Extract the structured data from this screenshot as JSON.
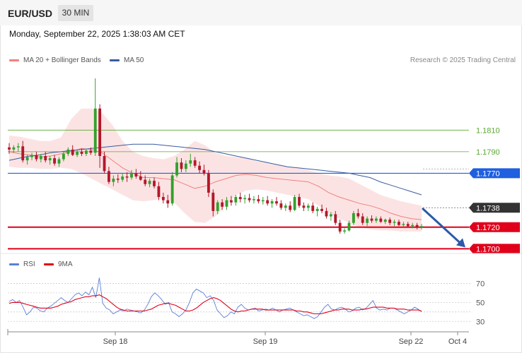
{
  "header": {
    "symbol": "EUR/USD",
    "timeframe": "30 MIN",
    "datetime": "Monday, September 22, 2025 1:38:03 AM CET"
  },
  "legend": {
    "bollinger": "MA 20 + Bollinger Bands",
    "ma50": "MA 50",
    "rsi": "RSI",
    "rsi_ma": "9MA",
    "credit": "Research © 2025 Trading Central"
  },
  "colors": {
    "bull": "#33a02c",
    "bear": "#b2182b",
    "bollinger": "#f08080",
    "ma50": "#3a5ba0",
    "rsi": "#5b7fd8",
    "rsi_ma": "#e0001a",
    "resistance": "#5aa832",
    "pivot": "#1f5fe0",
    "support": "#e0001a",
    "last": "#333333",
    "arrow": "#2a5aa8"
  },
  "chart_data": [
    {
      "type": "candlestick",
      "x_labels": [
        "Sep 18",
        "Sep 19",
        "Sep 22",
        "Oct 4"
      ],
      "ylim": [
        1.1695,
        1.1875
      ],
      "levels": [
        {
          "label": "1.1810",
          "value": 1.181,
          "kind": "resistance"
        },
        {
          "label": "1.1790",
          "value": 1.179,
          "kind": "resistance"
        },
        {
          "label": "1.1770",
          "value": 1.177,
          "kind": "pivot"
        },
        {
          "label": "1.1738",
          "value": 1.1738,
          "kind": "last"
        },
        {
          "label": "1.1720",
          "value": 1.172,
          "kind": "support"
        },
        {
          "label": "1.1700",
          "value": 1.17,
          "kind": "support"
        }
      ],
      "candles": [
        [
          1.1794,
          1.1798,
          1.1788,
          1.1792
        ],
        [
          1.1792,
          1.1796,
          1.1789,
          1.1794
        ],
        [
          1.1794,
          1.1798,
          1.179,
          1.1795
        ],
        [
          1.1795,
          1.18,
          1.178,
          1.1782
        ],
        [
          1.1782,
          1.1787,
          1.1778,
          1.1785
        ],
        [
          1.1785,
          1.1789,
          1.1782,
          1.1787
        ],
        [
          1.1787,
          1.179,
          1.1781,
          1.1783
        ],
        [
          1.1783,
          1.1788,
          1.178,
          1.1786
        ],
        [
          1.1786,
          1.179,
          1.178,
          1.1782
        ],
        [
          1.1782,
          1.1786,
          1.1778,
          1.1784
        ],
        [
          1.1784,
          1.1787,
          1.1777,
          1.1779
        ],
        [
          1.1779,
          1.1785,
          1.1776,
          1.1783
        ],
        [
          1.1783,
          1.179,
          1.1781,
          1.1788
        ],
        [
          1.1788,
          1.1794,
          1.1786,
          1.1792
        ],
        [
          1.1792,
          1.1796,
          1.1786,
          1.1787
        ],
        [
          1.1787,
          1.1792,
          1.1785,
          1.179
        ],
        [
          1.179,
          1.1793,
          1.1786,
          1.1788
        ],
        [
          1.1788,
          1.1792,
          1.1786,
          1.1791
        ],
        [
          1.1791,
          1.1794,
          1.1787,
          1.1789
        ],
        [
          1.1789,
          1.1858,
          1.1786,
          1.183
        ],
        [
          1.183,
          1.1834,
          1.1775,
          1.1786
        ],
        [
          1.1786,
          1.179,
          1.177,
          1.1772
        ],
        [
          1.1772,
          1.1776,
          1.176,
          1.1762
        ],
        [
          1.1762,
          1.1768,
          1.1758,
          1.1765
        ],
        [
          1.1765,
          1.1769,
          1.1761,
          1.1764
        ],
        [
          1.1764,
          1.177,
          1.1762,
          1.1767
        ],
        [
          1.1767,
          1.1771,
          1.1762,
          1.1766
        ],
        [
          1.1766,
          1.1773,
          1.1764,
          1.177
        ],
        [
          1.177,
          1.1774,
          1.1765,
          1.1767
        ],
        [
          1.1767,
          1.1772,
          1.1763,
          1.1764
        ],
        [
          1.1764,
          1.1768,
          1.1758,
          1.176
        ],
        [
          1.176,
          1.1765,
          1.1757,
          1.1763
        ],
        [
          1.1763,
          1.1766,
          1.1756,
          1.1758
        ],
        [
          1.1758,
          1.1762,
          1.1745,
          1.1748
        ],
        [
          1.1748,
          1.1752,
          1.1742,
          1.1745
        ],
        [
          1.1745,
          1.175,
          1.1738,
          1.1742
        ],
        [
          1.1742,
          1.1771,
          1.174,
          1.1768
        ],
        [
          1.1768,
          1.1785,
          1.1766,
          1.178
        ],
        [
          1.178,
          1.1784,
          1.1771,
          1.1774
        ],
        [
          1.1774,
          1.1782,
          1.1771,
          1.1779
        ],
        [
          1.1779,
          1.1788,
          1.1776,
          1.1782
        ],
        [
          1.1782,
          1.1785,
          1.1775,
          1.1777
        ],
        [
          1.1777,
          1.1781,
          1.177,
          1.1773
        ],
        [
          1.1773,
          1.1778,
          1.1768,
          1.177
        ],
        [
          1.177,
          1.1773,
          1.1748,
          1.1752
        ],
        [
          1.1752,
          1.1755,
          1.173,
          1.1735
        ],
        [
          1.1735,
          1.1745,
          1.1732,
          1.1743
        ],
        [
          1.1743,
          1.1746,
          1.1736,
          1.1739
        ],
        [
          1.1739,
          1.1748,
          1.1736,
          1.1745
        ],
        [
          1.1745,
          1.1749,
          1.174,
          1.1743
        ],
        [
          1.1743,
          1.175,
          1.174,
          1.1748
        ],
        [
          1.1748,
          1.1752,
          1.1743,
          1.1746
        ],
        [
          1.1746,
          1.175,
          1.1742,
          1.1747
        ],
        [
          1.1747,
          1.1751,
          1.1743,
          1.1745
        ],
        [
          1.1745,
          1.1749,
          1.1742,
          1.1746
        ],
        [
          1.1746,
          1.175,
          1.1742,
          1.1744
        ],
        [
          1.1744,
          1.1748,
          1.1741,
          1.1745
        ],
        [
          1.1745,
          1.1749,
          1.174,
          1.1742
        ],
        [
          1.1742,
          1.1746,
          1.1738,
          1.1744
        ],
        [
          1.1744,
          1.1748,
          1.174,
          1.1742
        ],
        [
          1.1742,
          1.1745,
          1.1736,
          1.1738
        ],
        [
          1.1738,
          1.1742,
          1.1735,
          1.174
        ],
        [
          1.174,
          1.1744,
          1.1734,
          1.1736
        ],
        [
          1.1736,
          1.175,
          1.1735,
          1.1748
        ],
        [
          1.1748,
          1.1751,
          1.1738,
          1.174
        ],
        [
          1.174,
          1.1743,
          1.1735,
          1.1738
        ],
        [
          1.1738,
          1.1742,
          1.1735,
          1.174
        ],
        [
          1.174,
          1.1743,
          1.1733,
          1.1735
        ],
        [
          1.1735,
          1.1739,
          1.173,
          1.1737
        ],
        [
          1.1737,
          1.1741,
          1.1733,
          1.1735
        ],
        [
          1.1735,
          1.1738,
          1.1728,
          1.173
        ],
        [
          1.173,
          1.1734,
          1.1726,
          1.1732
        ],
        [
          1.1732,
          1.1735,
          1.1722,
          1.1724
        ],
        [
          1.1724,
          1.1727,
          1.1714,
          1.1716
        ],
        [
          1.1716,
          1.1719,
          1.1714,
          1.1717
        ],
        [
          1.1717,
          1.1726,
          1.1716,
          1.1724
        ],
        [
          1.1724,
          1.1735,
          1.1722,
          1.1733
        ],
        [
          1.1733,
          1.1737,
          1.1728,
          1.173
        ],
        [
          1.173,
          1.1733,
          1.1722,
          1.1724
        ],
        [
          1.1724,
          1.173,
          1.1721,
          1.1728
        ],
        [
          1.1728,
          1.1731,
          1.1724,
          1.1726
        ],
        [
          1.1726,
          1.173,
          1.1724,
          1.1728
        ],
        [
          1.1728,
          1.173,
          1.1724,
          1.1725
        ],
        [
          1.1725,
          1.1728,
          1.1723,
          1.1727
        ],
        [
          1.1727,
          1.1729,
          1.1722,
          1.1724
        ],
        [
          1.1724,
          1.1727,
          1.1721,
          1.1725
        ],
        [
          1.1725,
          1.1727,
          1.1721,
          1.1722
        ],
        [
          1.1722,
          1.1725,
          1.172,
          1.1723
        ],
        [
          1.1723,
          1.1725,
          1.172,
          1.1721
        ],
        [
          1.1721,
          1.1724,
          1.1719,
          1.1722
        ],
        [
          1.1722,
          1.1724,
          1.1718,
          1.172
        ],
        [
          1.172,
          1.1723,
          1.1718,
          1.1721
        ]
      ],
      "ma50": [
        1.1782,
        1.1784,
        1.1786,
        1.1787,
        1.1789,
        1.179,
        1.1791,
        1.1792,
        1.1793,
        1.1794,
        1.1795,
        1.1796,
        1.1797,
        1.1797,
        1.1797,
        1.1796,
        1.1795,
        1.1794,
        1.1793,
        1.1792,
        1.179,
        1.1788,
        1.1786,
        1.1784,
        1.1782,
        1.178,
        1.1778,
        1.1776,
        1.1775,
        1.1774,
        1.1773,
        1.1772,
        1.1771,
        1.177,
        1.1768,
        1.1766,
        1.1762,
        1.1759,
        1.1756,
        1.1753,
        1.175
      ],
      "ma20": [
        1.179,
        1.1788,
        1.1787,
        1.1785,
        1.1786,
        1.1788,
        1.179,
        1.1793,
        1.1792,
        1.1789,
        1.1782,
        1.1775,
        1.177,
        1.1766,
        1.1766,
        1.1765,
        1.1764,
        1.176,
        1.1756,
        1.1758,
        1.1762,
        1.1765,
        1.1768,
        1.1769,
        1.1768,
        1.1766,
        1.1765,
        1.1764,
        1.1763,
        1.1762,
        1.1758,
        1.1752,
        1.1748,
        1.1745,
        1.1742,
        1.174,
        1.1737,
        1.1733,
        1.173,
        1.1728,
        1.1727
      ],
      "bb_upper": [
        1.1805,
        1.1804,
        1.1802,
        1.18,
        1.18,
        1.1803,
        1.182,
        1.183,
        1.183,
        1.1826,
        1.1815,
        1.18,
        1.179,
        1.1786,
        1.1784,
        1.1783,
        1.1786,
        1.1792,
        1.18,
        1.1796,
        1.1789,
        1.1786,
        1.1785,
        1.1784,
        1.1781,
        1.178,
        1.1778,
        1.1776,
        1.1775,
        1.1773,
        1.177,
        1.1768,
        1.1767,
        1.1765,
        1.176,
        1.1755,
        1.175,
        1.1747,
        1.1744,
        1.1742,
        1.174
      ],
      "bb_lower": [
        1.1776,
        1.1775,
        1.1775,
        1.1774,
        1.1774,
        1.1775,
        1.1774,
        1.177,
        1.1765,
        1.176,
        1.1755,
        1.175,
        1.1745,
        1.1744,
        1.1745,
        1.1747,
        1.1743,
        1.1733,
        1.1725,
        1.1724,
        1.173,
        1.174,
        1.175,
        1.1754,
        1.1755,
        1.1754,
        1.1752,
        1.175,
        1.1748,
        1.1746,
        1.174,
        1.1733,
        1.1728,
        1.1724,
        1.172,
        1.1718,
        1.1717,
        1.1717,
        1.1716,
        1.1716,
        1.1716
      ],
      "projection": {
        "from": [
          1.1737,
          1.1738
        ],
        "to": [
          1.17,
          1.17
        ]
      }
    },
    {
      "type": "line",
      "name": "RSI",
      "ylim": [
        25,
        80
      ],
      "y_ticks": [
        "70",
        "50",
        "30"
      ],
      "series": [
        {
          "name": "RSI",
          "values": [
            51,
            53,
            50,
            52,
            45,
            37,
            40,
            45,
            44,
            41,
            40,
            44,
            46,
            49,
            52,
            55,
            52,
            50,
            54,
            58,
            60,
            57,
            61,
            58,
            66,
            55,
            76,
            49,
            44,
            42,
            38,
            40,
            42,
            41,
            43,
            42,
            41,
            40,
            39,
            42,
            48,
            56,
            60,
            57,
            53,
            48,
            50,
            40,
            38,
            35,
            38,
            42,
            50,
            60,
            64,
            62,
            60,
            55,
            57,
            52,
            42,
            38,
            34,
            36,
            40,
            38,
            45,
            48,
            44,
            42,
            43,
            44,
            41,
            42,
            43,
            42,
            44,
            42,
            40,
            42,
            43,
            44,
            42,
            40,
            38,
            36,
            37,
            35,
            33,
            35,
            40,
            45,
            48,
            43,
            42,
            44,
            45,
            43,
            40,
            41,
            44,
            45,
            42,
            44,
            48,
            52,
            44,
            42,
            43,
            42,
            44,
            44,
            42,
            40,
            38,
            40,
            42,
            45,
            43,
            40
          ]
        },
        {
          "name": "9MA",
          "values": [
            49,
            50,
            50,
            50,
            49,
            48,
            47,
            46,
            45,
            44,
            44,
            44,
            44,
            45,
            46,
            48,
            49,
            50,
            51,
            53,
            54,
            55,
            56,
            56,
            57,
            57,
            58,
            56,
            54,
            51,
            48,
            45,
            43,
            42,
            41,
            41,
            41,
            41,
            41,
            41,
            42,
            43,
            45,
            47,
            48,
            49,
            49,
            48,
            47,
            45,
            43,
            41,
            41,
            42,
            44,
            47,
            50,
            52,
            54,
            55,
            54,
            52,
            49,
            46,
            43,
            41,
            40,
            41,
            41,
            42,
            43,
            43,
            43,
            43,
            42,
            42,
            42,
            42,
            42,
            42,
            42,
            42,
            42,
            41,
            41,
            40,
            40,
            39,
            38,
            38,
            38,
            39,
            40,
            41,
            42,
            42,
            43,
            43,
            43,
            42,
            42,
            42,
            43,
            43,
            44,
            45,
            45,
            45,
            45,
            44,
            44,
            44,
            43,
            43,
            43,
            42,
            42,
            42,
            42,
            41
          ]
        }
      ]
    }
  ]
}
